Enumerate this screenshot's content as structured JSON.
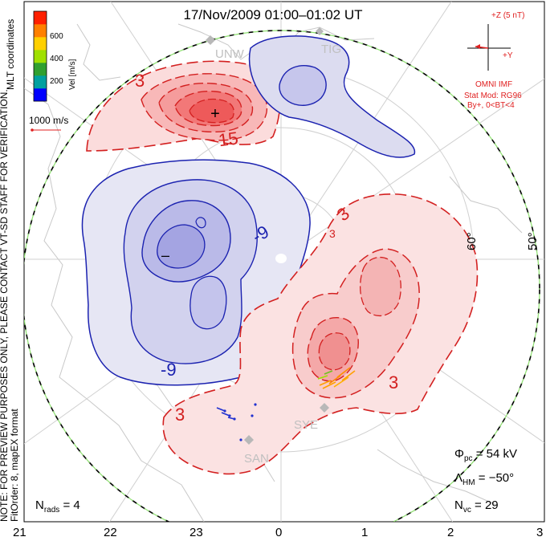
{
  "chart_data": {
    "type": "contour",
    "title": "17/Nov/2009 01:00–01:02 UT",
    "coord_label": "MLT coordinates",
    "vel_unit": "Vel [m/s]",
    "colorbar_ticks": [
      {
        "value": 600,
        "label": "600"
      },
      {
        "value": 400,
        "label": "400"
      },
      {
        "value": 200,
        "label": "200"
      }
    ],
    "colorbar_colors": [
      "#0000ff",
      "#00a0a0",
      "#30a030",
      "#a0e000",
      "#ffd000",
      "#ff8000",
      "#ff2000"
    ],
    "vel_scale_label": "1000 m/s",
    "imf": {
      "z_label": "+Z (5 nT)",
      "y_label": "+Y",
      "source": "OMNI IMF",
      "stat_mod": "Stat Mod: RG96",
      "condition": "By+, 0<BT<4"
    },
    "note_line1": "NOTE: FOR PREVIEW PURPOSES ONLY, PLEASE CONTACT VT-SD STAFF FOR VERIFICATION.",
    "note_line2": "FitOrder: 8, mapEX format",
    "mlt_ticks": [
      "21",
      "22",
      "23",
      "0",
      "1",
      "2",
      "3"
    ],
    "lat_labels": [
      "60°",
      "50°"
    ],
    "radars": [
      "UNW",
      "TIG",
      "SYE",
      "SAN"
    ],
    "contour_labels": [
      "3",
      "15",
      "-9",
      "-9",
      "3",
      "3",
      "3",
      "3"
    ],
    "min_marker": "–",
    "max_marker": "+",
    "stats": {
      "phi_pc": "54 kV",
      "lambda_hm": "−50°",
      "n_vc": "29",
      "n_rads": "4"
    },
    "stat_labels": {
      "phi": "Φ",
      "phi_sub": "pc",
      "lambda": "Λ",
      "lambda_sub": "HM",
      "nvc": "N",
      "nvc_sub": "vc",
      "nrads": "N",
      "nrads_sub": "rads"
    }
  }
}
